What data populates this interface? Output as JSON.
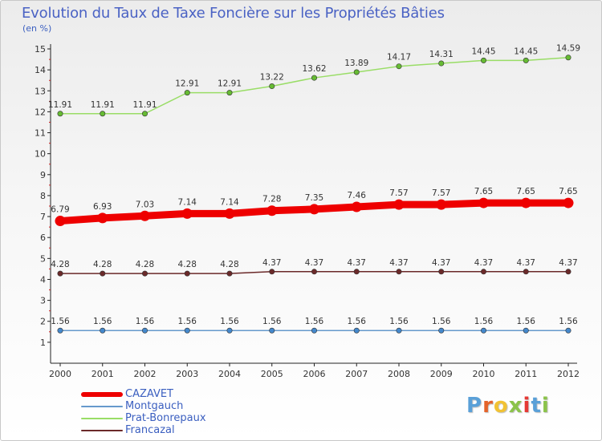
{
  "title": "Evolution du Taux de Taxe Foncière sur les Propriétés Bâties",
  "unit_label": "(en %)",
  "logo": {
    "text": "Proxiti",
    "letter_colors": [
      "#5aa0d8",
      "#e4632a",
      "#f1c233",
      "#8bc34a",
      "#e53935",
      "#5aa0d8",
      "#8bc34a"
    ]
  },
  "chart_data": {
    "type": "line",
    "x": [
      "2000",
      "2001",
      "2002",
      "2003",
      "2004",
      "2005",
      "2006",
      "2007",
      "2008",
      "2009",
      "2010",
      "2011",
      "2012"
    ],
    "ylim": [
      0,
      15
    ],
    "yticks": [
      1,
      2,
      3,
      4,
      5,
      6,
      7,
      8,
      9,
      10,
      11,
      12,
      13,
      14,
      15
    ],
    "grid": false,
    "legend_position": "bottom-left",
    "series": [
      {
        "name": "Prat-Bonrepaux",
        "color": "#99dd66",
        "marker_color": "#66bb33",
        "values": [
          11.91,
          11.91,
          11.91,
          12.91,
          12.91,
          13.22,
          13.62,
          13.89,
          14.17,
          14.31,
          14.45,
          14.45,
          14.59
        ],
        "labels": [
          "11.91",
          "11.91",
          "11.91",
          "12.91",
          "12.91",
          "13.22",
          "13.62",
          "13.89",
          "14.17",
          "14.31",
          "14.45",
          "14.45",
          "14.59"
        ]
      },
      {
        "name": "CAZAVET",
        "color": "#ee0000",
        "marker_color": "#ee0000",
        "values": [
          6.79,
          6.93,
          7.03,
          7.14,
          7.14,
          7.28,
          7.35,
          7.46,
          7.57,
          7.57,
          7.65,
          7.65,
          7.65
        ],
        "labels": [
          "6.79",
          "6.93",
          "7.03",
          "7.14",
          "7.14",
          "7.28",
          "7.35",
          "7.46",
          "7.57",
          "7.57",
          "7.65",
          "7.65",
          "7.65"
        ]
      },
      {
        "name": "Francazal",
        "color": "#6b2a2a",
        "marker_color": "#6b2a2a",
        "values": [
          4.28,
          4.28,
          4.28,
          4.28,
          4.28,
          4.37,
          4.37,
          4.37,
          4.37,
          4.37,
          4.37,
          4.37,
          4.37
        ],
        "labels": [
          "4.28",
          "4.28",
          "4.28",
          "4.28",
          "4.28",
          "4.37",
          "4.37",
          "4.37",
          "4.37",
          "4.37",
          "4.37",
          "4.37",
          "4.37"
        ]
      },
      {
        "name": "Montgauch",
        "color": "#6699cc",
        "marker_color": "#4488cc",
        "values": [
          1.56,
          1.56,
          1.56,
          1.56,
          1.56,
          1.56,
          1.56,
          1.56,
          1.56,
          1.56,
          1.56,
          1.56,
          1.56
        ],
        "labels": [
          "1.56",
          "1.56",
          "1.56",
          "1.56",
          "1.56",
          "1.56",
          "1.56",
          "1.56",
          "1.56",
          "1.56",
          "1.56",
          "1.56",
          "1.56"
        ]
      }
    ]
  },
  "legend": [
    {
      "label": "CAZAVET",
      "color": "#ee0000"
    },
    {
      "label": "Montgauch",
      "color": "#6699cc"
    },
    {
      "label": "Prat-Bonrepaux",
      "color": "#99dd66"
    },
    {
      "label": "Francazal",
      "color": "#6b2a2a"
    }
  ]
}
